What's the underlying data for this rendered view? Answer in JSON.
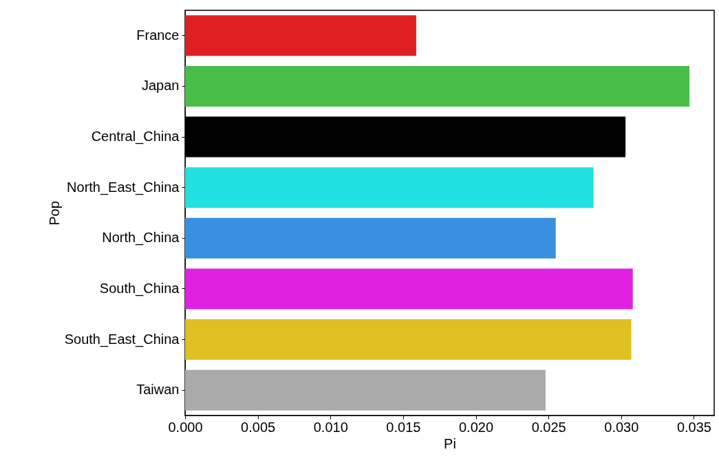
{
  "chart_data": {
    "type": "bar",
    "orientation": "horizontal",
    "xlabel": "Pi",
    "ylabel": "Pop",
    "categories": [
      "France",
      "Japan",
      "Central_China",
      "North_East_China",
      "North_China",
      "South_China",
      "South_East_China",
      "Taiwan"
    ],
    "values": [
      0.0159,
      0.0347,
      0.0303,
      0.0281,
      0.0255,
      0.0308,
      0.0307,
      0.0248
    ],
    "colors": [
      "#e02020",
      "#48bd48",
      "#000000",
      "#20e0e0",
      "#3a90e0",
      "#e020e0",
      "#e0c020",
      "#aaaaaa"
    ],
    "xlim": [
      0,
      0.0364
    ],
    "xticks": [
      {
        "value": 0,
        "label": "0.000"
      },
      0.005,
      {
        "value": 0.01,
        "label": "0.010"
      },
      0.015,
      {
        "value": 0.02,
        "label": "0.020"
      },
      0.025,
      {
        "value": 0.03,
        "label": "0.030"
      },
      0.035
    ],
    "grid": false
  }
}
